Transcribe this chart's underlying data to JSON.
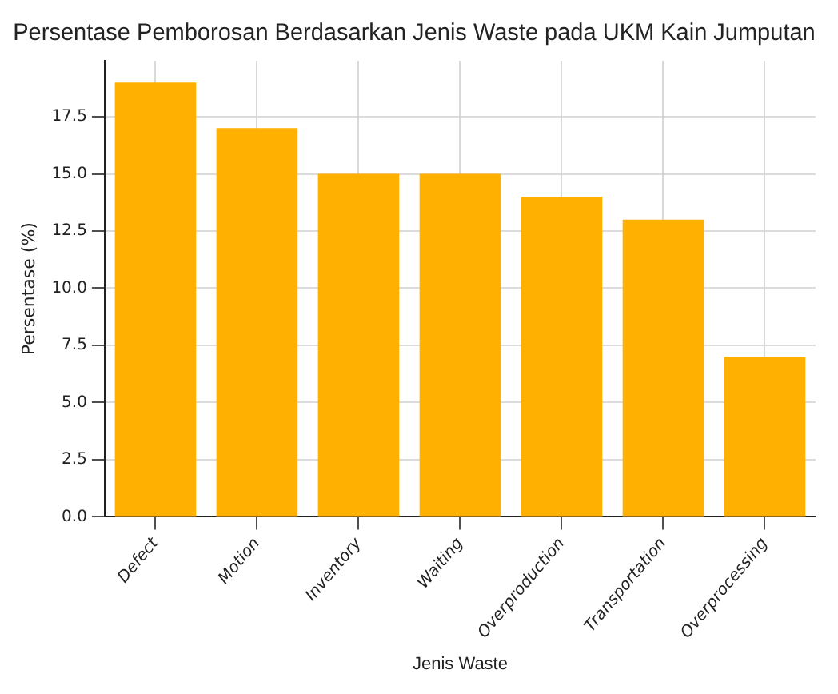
{
  "chart_data": {
    "type": "bar",
    "title": "Persentase Pemborosan Berdasarkan Jenis Waste pada UKM Kain Jumputan",
    "xlabel": "Jenis Waste",
    "ylabel": "Persentase (%)",
    "categories": [
      "Defect",
      "Motion",
      "Inventory",
      "Waiting",
      "Overproduction",
      "Transportation",
      "Overprocessing"
    ],
    "values": [
      19,
      17,
      15,
      15,
      14,
      13,
      7
    ],
    "color": "#ffb000",
    "ylim": [
      0,
      19.95
    ],
    "yticks": [
      {
        "value": 0,
        "label": "0.0"
      },
      {
        "value": 2.5,
        "label": "2.5"
      },
      {
        "value": 5,
        "label": "5.0"
      },
      {
        "value": 7.5,
        "label": "7.5"
      },
      {
        "value": 10,
        "label": "10.0"
      },
      {
        "value": 12.5,
        "label": "12.5"
      },
      {
        "value": 15,
        "label": "15.0"
      },
      {
        "value": 17.5,
        "label": "17.5"
      }
    ],
    "grid": true
  }
}
